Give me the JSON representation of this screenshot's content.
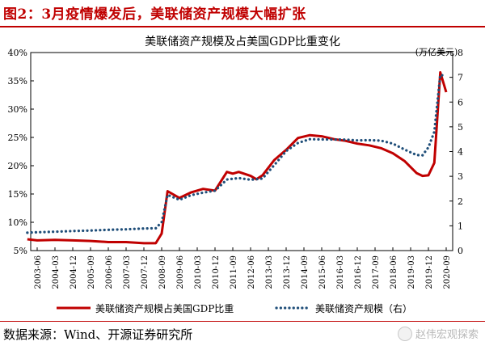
{
  "figure_title": "图2：3月疫情爆发后，美联储资产规模大幅扩张",
  "source_text": "数据来源：Wind、开源证券研究所",
  "watermark": "赵伟宏观探索",
  "colors": {
    "accent": "#c00000",
    "series1": "#c00000",
    "series2": "#1f4e79"
  },
  "chart_data": {
    "type": "line",
    "title": "美联储资产规模及占美国GDP比重变化",
    "right_axis_unit": "(万亿美元)",
    "x_ticks": [
      "2003-06",
      "2004-03",
      "2004-12",
      "2005-09",
      "2006-06",
      "2007-03",
      "2007-12",
      "2008-09",
      "2009-06",
      "2010-03",
      "2010-12",
      "2011-09",
      "2012-06",
      "2013-03",
      "2013-12",
      "2014-09",
      "2015-06",
      "2016-03",
      "2016-12",
      "2017-09",
      "2018-06",
      "2019-03",
      "2019-12",
      "2020-09"
    ],
    "left_axis": {
      "min": 5,
      "max": 40,
      "ticks": [
        "5%",
        "10%",
        "15%",
        "20%",
        "25%",
        "30%",
        "35%",
        "40%"
      ]
    },
    "right_axis": {
      "min": 0,
      "max": 8,
      "ticks": [
        "0",
        "1",
        "2",
        "3",
        "4",
        "5",
        "6",
        "7",
        "8"
      ]
    },
    "grid": false,
    "legend_position": "bottom",
    "series": [
      {
        "name": "美联储资产规模占美国GDP比重",
        "axis": "left",
        "style": "solid",
        "points": [
          [
            "2003-01",
            7.0
          ],
          [
            "2003-06",
            6.8
          ],
          [
            "2004-03",
            6.9
          ],
          [
            "2004-12",
            6.8
          ],
          [
            "2005-09",
            6.7
          ],
          [
            "2006-06",
            6.5
          ],
          [
            "2007-03",
            6.5
          ],
          [
            "2007-12",
            6.3
          ],
          [
            "2008-06",
            6.3
          ],
          [
            "2008-09",
            8.0
          ],
          [
            "2008-12",
            15.5
          ],
          [
            "2009-06",
            14.3
          ],
          [
            "2009-12",
            15.3
          ],
          [
            "2010-06",
            15.9
          ],
          [
            "2010-12",
            15.6
          ],
          [
            "2011-06",
            18.9
          ],
          [
            "2011-09",
            18.6
          ],
          [
            "2011-12",
            18.9
          ],
          [
            "2012-06",
            18.2
          ],
          [
            "2012-09",
            17.6
          ],
          [
            "2012-12",
            18.3
          ],
          [
            "2013-06",
            21.0
          ],
          [
            "2013-12",
            22.8
          ],
          [
            "2014-06",
            24.9
          ],
          [
            "2014-12",
            25.4
          ],
          [
            "2015-06",
            25.2
          ],
          [
            "2015-12",
            24.7
          ],
          [
            "2016-06",
            24.4
          ],
          [
            "2016-12",
            23.9
          ],
          [
            "2017-06",
            23.6
          ],
          [
            "2017-12",
            23.1
          ],
          [
            "2018-06",
            22.2
          ],
          [
            "2018-12",
            20.8
          ],
          [
            "2019-06",
            18.7
          ],
          [
            "2019-09",
            18.2
          ],
          [
            "2019-12",
            18.3
          ],
          [
            "2020-03",
            20.5
          ],
          [
            "2020-06",
            36.5
          ],
          [
            "2020-09",
            33.0
          ]
        ]
      },
      {
        "name": "美联储资产规模（右）",
        "axis": "right",
        "style": "dotted",
        "points": [
          [
            "2003-01",
            0.72
          ],
          [
            "2003-06",
            0.74
          ],
          [
            "2004-03",
            0.76
          ],
          [
            "2004-12",
            0.79
          ],
          [
            "2005-09",
            0.81
          ],
          [
            "2006-06",
            0.84
          ],
          [
            "2007-03",
            0.86
          ],
          [
            "2007-12",
            0.89
          ],
          [
            "2008-06",
            0.9
          ],
          [
            "2008-09",
            1.15
          ],
          [
            "2008-12",
            2.25
          ],
          [
            "2009-06",
            2.05
          ],
          [
            "2009-12",
            2.24
          ],
          [
            "2010-06",
            2.34
          ],
          [
            "2010-12",
            2.42
          ],
          [
            "2011-06",
            2.87
          ],
          [
            "2011-12",
            2.93
          ],
          [
            "2012-06",
            2.86
          ],
          [
            "2012-12",
            2.91
          ],
          [
            "2013-06",
            3.45
          ],
          [
            "2013-12",
            4.02
          ],
          [
            "2014-06",
            4.35
          ],
          [
            "2014-12",
            4.5
          ],
          [
            "2015-06",
            4.49
          ],
          [
            "2015-12",
            4.49
          ],
          [
            "2016-06",
            4.48
          ],
          [
            "2016-12",
            4.45
          ],
          [
            "2017-06",
            4.46
          ],
          [
            "2017-12",
            4.44
          ],
          [
            "2018-06",
            4.32
          ],
          [
            "2018-12",
            4.08
          ],
          [
            "2019-06",
            3.86
          ],
          [
            "2019-09",
            3.85
          ],
          [
            "2019-12",
            4.17
          ],
          [
            "2020-03",
            4.8
          ],
          [
            "2020-06",
            7.1
          ],
          [
            "2020-09",
            7.05
          ]
        ]
      }
    ]
  }
}
